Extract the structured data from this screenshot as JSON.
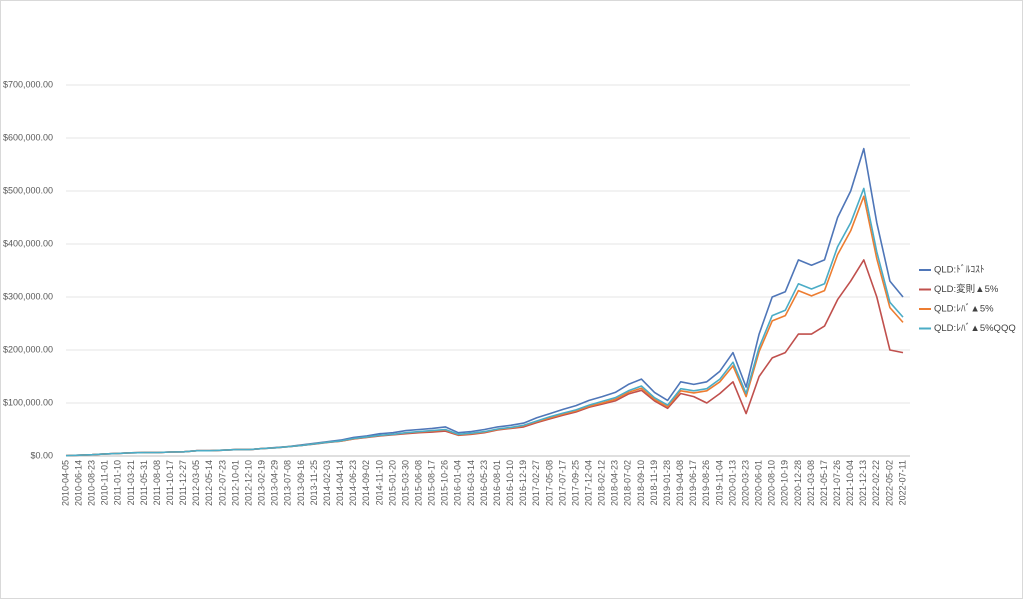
{
  "chart_data": {
    "type": "line",
    "categories": [
      "2010-04-05",
      "2010-06-14",
      "2010-08-23",
      "2010-11-01",
      "2011-01-10",
      "2011-03-21",
      "2011-05-31",
      "2011-08-08",
      "2011-10-17",
      "2011-12-27",
      "2012-03-05",
      "2012-05-14",
      "2012-07-23",
      "2012-10-01",
      "2012-12-10",
      "2013-02-19",
      "2013-04-29",
      "2013-07-08",
      "2013-09-16",
      "2013-11-25",
      "2014-02-03",
      "2014-04-14",
      "2014-06-23",
      "2014-09-02",
      "2014-11-10",
      "2015-01-20",
      "2015-03-30",
      "2015-06-08",
      "2015-08-17",
      "2015-10-26",
      "2016-01-04",
      "2016-03-14",
      "2016-05-23",
      "2016-08-01",
      "2016-10-10",
      "2016-12-19",
      "2017-02-27",
      "2017-05-08",
      "2017-07-17",
      "2017-09-25",
      "2017-12-04",
      "2018-02-12",
      "2018-04-23",
      "2018-07-02",
      "2018-09-10",
      "2018-11-19",
      "2019-01-28",
      "2019-04-08",
      "2019-06-17",
      "2019-08-26",
      "2019-11-04",
      "2020-01-13",
      "2020-03-23",
      "2020-06-01",
      "2020-08-10",
      "2020-10-19",
      "2020-12-28",
      "2021-03-08",
      "2021-05-17",
      "2021-07-26",
      "2021-10-04",
      "2021-12-13",
      "2022-02-22",
      "2022-05-02",
      "2022-07-11"
    ],
    "series": [
      {
        "name": "QLD:ﾄﾞﾙｺｽﾄ",
        "color": "#4f76b8",
        "values": [
          500,
          1500,
          2500,
          4000,
          5000,
          6000,
          6500,
          6500,
          7500,
          8000,
          10000,
          10000,
          11000,
          12000,
          12000,
          14000,
          16000,
          18000,
          21000,
          24000,
          27000,
          30000,
          35000,
          38000,
          42000,
          44000,
          48000,
          50000,
          52000,
          55000,
          44000,
          46000,
          50000,
          55000,
          58000,
          62000,
          72000,
          80000,
          88000,
          95000,
          105000,
          112000,
          120000,
          135000,
          145000,
          120000,
          105000,
          140000,
          135000,
          140000,
          160000,
          195000,
          130000,
          230000,
          300000,
          310000,
          370000,
          360000,
          370000,
          450000,
          500000,
          580000,
          440000,
          330000,
          300000
        ]
      },
      {
        "name": "QLD:変則▲5%",
        "color": "#c0504d",
        "values": [
          500,
          1500,
          2500,
          4000,
          5000,
          6000,
          6500,
          6500,
          7500,
          8000,
          10000,
          10000,
          11000,
          12000,
          12000,
          14000,
          15500,
          17500,
          20000,
          22500,
          25500,
          28000,
          32000,
          35000,
          38000,
          40000,
          42000,
          44000,
          45000,
          47000,
          39000,
          41000,
          44000,
          49000,
          52000,
          55000,
          63000,
          70000,
          77000,
          83000,
          92000,
          98000,
          104000,
          117000,
          124000,
          104000,
          90000,
          118000,
          112000,
          100000,
          118000,
          140000,
          80000,
          150000,
          185000,
          195000,
          230000,
          230000,
          245000,
          295000,
          330000,
          370000,
          300000,
          200000,
          195000
        ]
      },
      {
        "name": "QLD:ﾚﾊﾞ▲5%",
        "color": "#ed7d31",
        "values": [
          500,
          1500,
          2500,
          4000,
          5000,
          6000,
          6500,
          6500,
          7500,
          8000,
          10000,
          10000,
          11000,
          12000,
          12000,
          14000,
          15500,
          17500,
          20000,
          23000,
          26000,
          28000,
          32500,
          35500,
          38500,
          40500,
          43500,
          45500,
          47000,
          49000,
          40000,
          42000,
          45000,
          50000,
          53000,
          57000,
          65000,
          72000,
          79000,
          85000,
          94000,
          100000,
          107000,
          120000,
          128000,
          107000,
          93000,
          123000,
          119000,
          123000,
          140000,
          170000,
          112000,
          197000,
          255000,
          265000,
          312000,
          302000,
          312000,
          380000,
          425000,
          490000,
          372000,
          280000,
          252000
        ]
      },
      {
        "name": "QLD:ﾚﾊﾞ▲5%QQQ",
        "color": "#4bacc6",
        "values": [
          500,
          1500,
          2500,
          4000,
          5000,
          6000,
          6500,
          6500,
          7500,
          8000,
          10000,
          10000,
          11000,
          12000,
          12000,
          14000,
          15500,
          17500,
          20000,
          23000,
          26000,
          28500,
          33000,
          36000,
          39000,
          41000,
          44000,
          46000,
          48000,
          50000,
          41000,
          43000,
          46000,
          51000,
          54000,
          58000,
          66000,
          74000,
          81000,
          87000,
          96000,
          103000,
          110000,
          123000,
          132000,
          110000,
          96000,
          127000,
          123000,
          127000,
          145000,
          177000,
          118000,
          205000,
          265000,
          275000,
          325000,
          315000,
          325000,
          395000,
          440000,
          505000,
          385000,
          290000,
          262000
        ]
      }
    ],
    "ylim": [
      0,
      700000
    ],
    "yticks": [
      {
        "value": 0,
        "label": "$0.00"
      },
      {
        "value": 100000,
        "label": "$100,000.00"
      },
      {
        "value": 200000,
        "label": "$200,000.00"
      },
      {
        "value": 300000,
        "label": "$300,000.00"
      },
      {
        "value": 400000,
        "label": "$400,000.00"
      },
      {
        "value": 500000,
        "label": "$500,000.00"
      },
      {
        "value": 600000,
        "label": "$600,000.00"
      },
      {
        "value": 700000,
        "label": "$700,000.00"
      }
    ],
    "grid": true,
    "legend": "right"
  }
}
